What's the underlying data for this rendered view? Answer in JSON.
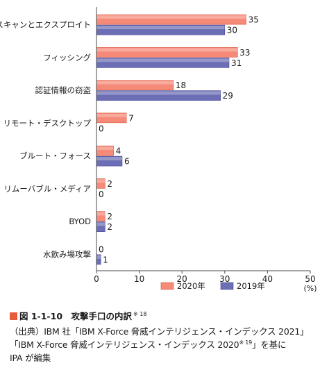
{
  "colors": {
    "bar_2020": "#f58a78",
    "bar_2019": "#6c6fb5",
    "accent": "#e85a3c",
    "axis": "#4a4a4a"
  },
  "chart_data": {
    "type": "bar",
    "orientation": "horizontal",
    "categories": [
      "スキャンとエクスプロイト",
      "フィッシング",
      "認証情報の窃盗",
      "リモート・デスクトップ",
      "ブルート・フォース",
      "リムーバブル・メディア",
      "BYOD",
      "水飲み場攻撃"
    ],
    "series": [
      {
        "name": "2020年",
        "values": [
          35,
          33,
          18,
          7,
          4,
          2,
          2,
          0
        ]
      },
      {
        "name": "2019年",
        "values": [
          30,
          31,
          29,
          0,
          6,
          0,
          2,
          1
        ]
      }
    ],
    "xlim": [
      0,
      50
    ],
    "xticks": [
      0,
      10,
      20,
      30,
      40,
      50
    ],
    "unit": "(%)",
    "legend_position": "bottom-right",
    "grid": false
  },
  "caption": {
    "figure_label": "図 1-1-10　攻撃手口の内訳",
    "figure_note": "※ 18",
    "source_line1": "（出典）IBM 社「IBM X-Force 脅威インテリジェンス・インデックス 2021」",
    "source_line2a": "「IBM X-Force 脅威インテリジェンス・インデックス 2020",
    "source_line2_note": "※ 19",
    "source_line2b": "」を基に",
    "source_line3": "IPA が編集"
  }
}
